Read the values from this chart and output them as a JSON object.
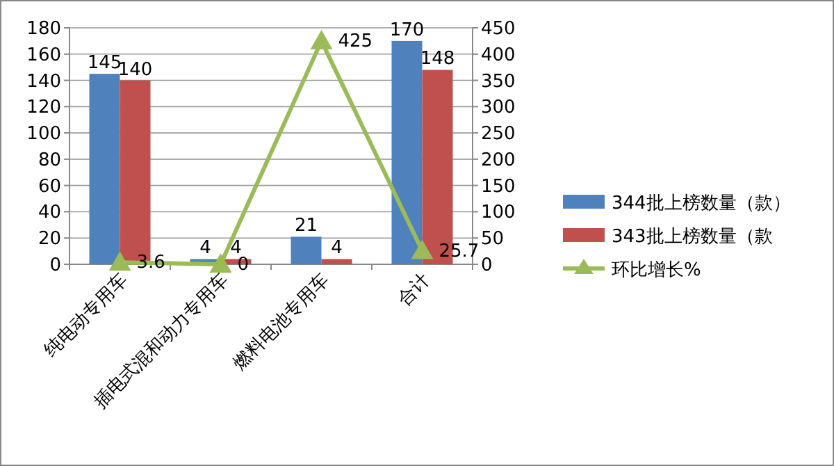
{
  "chart_data": {
    "type": "bar",
    "categories": [
      "纯电动专用车",
      "插电式混和动力专用车",
      "燃料电池专用车",
      "合计"
    ],
    "series": [
      {
        "name": "344批上榜数量（款）",
        "color": "#4f81bd",
        "values": [
          145,
          4,
          21,
          170
        ]
      },
      {
        "name": "343批上榜数量（款",
        "color": "#c0504d",
        "values": [
          140,
          4,
          4,
          148
        ]
      },
      {
        "name": "环比增长%",
        "type": "line",
        "axis": "y2",
        "color": "#9bbb59",
        "marker": "triangle",
        "values": [
          3.6,
          0,
          425,
          25.7
        ]
      }
    ],
    "ylim": [
      0,
      180
    ],
    "yticks": [
      0,
      20,
      40,
      60,
      80,
      100,
      120,
      140,
      160,
      180
    ],
    "y2lim": [
      0,
      450
    ],
    "y2ticks": [
      0,
      50,
      100,
      150,
      200,
      250,
      300,
      350,
      400,
      450
    ],
    "data_labels": true,
    "grid": "y",
    "legend": "right"
  }
}
